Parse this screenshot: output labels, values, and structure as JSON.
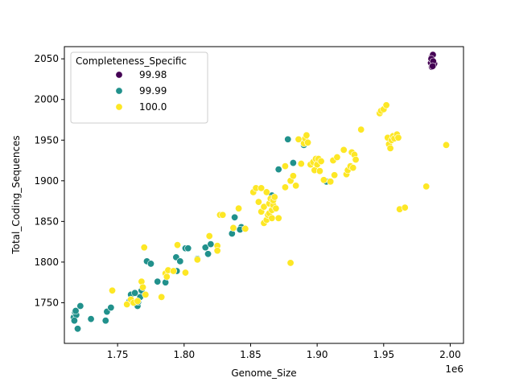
{
  "chart_data": {
    "type": "scatter",
    "xlabel": "Genome_Size",
    "ylabel": "Total_Coding_Sequences",
    "x_offset_label": "1e6",
    "xlim": [
      1710000,
      2010000
    ],
    "ylim": [
      1700,
      2065
    ],
    "x_ticks": [
      {
        "value": 1750000,
        "label": "1.75"
      },
      {
        "value": 1800000,
        "label": "1.80"
      },
      {
        "value": 1850000,
        "label": "1.85"
      },
      {
        "value": 1900000,
        "label": "1.90"
      },
      {
        "value": 1950000,
        "label": "1.95"
      },
      {
        "value": 2000000,
        "label": "2.00"
      }
    ],
    "y_ticks": [
      {
        "value": 1750,
        "label": "1750"
      },
      {
        "value": 1800,
        "label": "1800"
      },
      {
        "value": 1850,
        "label": "1850"
      },
      {
        "value": 1900,
        "label": "1900"
      },
      {
        "value": 1950,
        "label": "1950"
      },
      {
        "value": 2000,
        "label": "2000"
      },
      {
        "value": 2050,
        "label": "2050"
      }
    ],
    "grid": false,
    "legend": {
      "title": "Completeness_Specific",
      "placement": "top-left"
    },
    "series": [
      {
        "name": "99.98",
        "color": "#440154",
        "points": [
          [
            1986000,
            2052
          ],
          [
            1987000,
            2055
          ],
          [
            1986500,
            2048
          ],
          [
            1985500,
            2045
          ],
          [
            1987500,
            2042
          ],
          [
            1986200,
            2040
          ],
          [
            1988000,
            2044
          ],
          [
            1985800,
            2050
          ],
          [
            1987200,
            2047
          ],
          [
            1986800,
            2041
          ]
        ]
      },
      {
        "name": "99.99",
        "color": "#21918c",
        "points": [
          [
            1717000,
            1732
          ],
          [
            1718000,
            1738
          ],
          [
            1719000,
            1735
          ],
          [
            1717500,
            1728
          ],
          [
            1718500,
            1740
          ],
          [
            1720000,
            1718
          ],
          [
            1722000,
            1746
          ],
          [
            1730000,
            1730
          ],
          [
            1741000,
            1728
          ],
          [
            1742000,
            1739
          ],
          [
            1745000,
            1744
          ],
          [
            1759000,
            1752
          ],
          [
            1760000,
            1760
          ],
          [
            1763000,
            1762
          ],
          [
            1765000,
            1746
          ],
          [
            1765500,
            1751
          ],
          [
            1767000,
            1757
          ],
          [
            1768000,
            1765
          ],
          [
            1772000,
            1801
          ],
          [
            1775000,
            1798
          ],
          [
            1780000,
            1776
          ],
          [
            1786000,
            1775
          ],
          [
            1788000,
            1790
          ],
          [
            1794000,
            1806
          ],
          [
            1794500,
            1789
          ],
          [
            1797000,
            1801
          ],
          [
            1801000,
            1817
          ],
          [
            1803000,
            1817
          ],
          [
            1810000,
            1804
          ],
          [
            1816000,
            1818
          ],
          [
            1818000,
            1810
          ],
          [
            1820000,
            1822
          ],
          [
            1836000,
            1835
          ],
          [
            1838000,
            1855
          ],
          [
            1843000,
            1843
          ],
          [
            1842000,
            1840
          ],
          [
            1866000,
            1882
          ],
          [
            1871000,
            1914
          ],
          [
            1878000,
            1951
          ],
          [
            1882000,
            1922
          ],
          [
            1890000,
            1944
          ],
          [
            1907000,
            1899
          ]
        ]
      },
      {
        "name": "100.0",
        "color": "#fde725",
        "points": [
          [
            1746000,
            1765
          ],
          [
            1757000,
            1748
          ],
          [
            1760000,
            1754
          ],
          [
            1762000,
            1750
          ],
          [
            1765000,
            1752
          ],
          [
            1768000,
            1776
          ],
          [
            1769000,
            1769
          ],
          [
            1770000,
            1818
          ],
          [
            1771000,
            1760
          ],
          [
            1783000,
            1757
          ],
          [
            1786000,
            1786
          ],
          [
            1787000,
            1782
          ],
          [
            1788000,
            1790
          ],
          [
            1792000,
            1789
          ],
          [
            1795000,
            1821
          ],
          [
            1801000,
            1787
          ],
          [
            1810000,
            1803
          ],
          [
            1819000,
            1832
          ],
          [
            1825000,
            1820
          ],
          [
            1825000,
            1814
          ],
          [
            1827000,
            1858
          ],
          [
            1829000,
            1858
          ],
          [
            1837000,
            1842
          ],
          [
            1841000,
            1866
          ],
          [
            1846000,
            1841
          ],
          [
            1852000,
            1886
          ],
          [
            1854000,
            1891
          ],
          [
            1856000,
            1874
          ],
          [
            1858000,
            1891
          ],
          [
            1858000,
            1862
          ],
          [
            1860000,
            1848
          ],
          [
            1860000,
            1868
          ],
          [
            1862000,
            1886
          ],
          [
            1862000,
            1852
          ],
          [
            1863000,
            1858
          ],
          [
            1864000,
            1872
          ],
          [
            1864000,
            1860
          ],
          [
            1865000,
            1878
          ],
          [
            1866000,
            1864
          ],
          [
            1866000,
            1854
          ],
          [
            1867000,
            1870
          ],
          [
            1867000,
            1876
          ],
          [
            1868000,
            1880
          ],
          [
            1869000,
            1866
          ],
          [
            1871000,
            1854
          ],
          [
            1876000,
            1892
          ],
          [
            1876000,
            1918
          ],
          [
            1880000,
            1799
          ],
          [
            1880000,
            1900
          ],
          [
            1882000,
            1906
          ],
          [
            1884000,
            1894
          ],
          [
            1886000,
            1951
          ],
          [
            1888000,
            1921
          ],
          [
            1890000,
            1946
          ],
          [
            1891000,
            1952
          ],
          [
            1892000,
            1956
          ],
          [
            1893000,
            1947
          ],
          [
            1895000,
            1920
          ],
          [
            1897000,
            1923
          ],
          [
            1898000,
            1913
          ],
          [
            1899000,
            1927
          ],
          [
            1900000,
            1920
          ],
          [
            1901000,
            1927
          ],
          [
            1902000,
            1912
          ],
          [
            1903000,
            1924
          ],
          [
            1905000,
            1901
          ],
          [
            1910000,
            1899
          ],
          [
            1912000,
            1925
          ],
          [
            1913000,
            1907
          ],
          [
            1915000,
            1929
          ],
          [
            1920000,
            1938
          ],
          [
            1922000,
            1908
          ],
          [
            1923000,
            1913
          ],
          [
            1925000,
            1918
          ],
          [
            1926000,
            1935
          ],
          [
            1927000,
            1916
          ],
          [
            1928000,
            1932
          ],
          [
            1929000,
            1926
          ],
          [
            1933000,
            1963
          ],
          [
            1947000,
            1983
          ],
          [
            1948000,
            1986
          ],
          [
            1950000,
            1988
          ],
          [
            1952000,
            1993
          ],
          [
            1953000,
            1953
          ],
          [
            1954000,
            1945
          ],
          [
            1955000,
            1940
          ],
          [
            1956000,
            1950
          ],
          [
            1957000,
            1955
          ],
          [
            1958000,
            1952
          ],
          [
            1960000,
            1957
          ],
          [
            1961000,
            1953
          ],
          [
            1962000,
            1865
          ],
          [
            1966000,
            1867
          ],
          [
            1982000,
            1893
          ],
          [
            1997000,
            1944
          ]
        ]
      }
    ]
  }
}
